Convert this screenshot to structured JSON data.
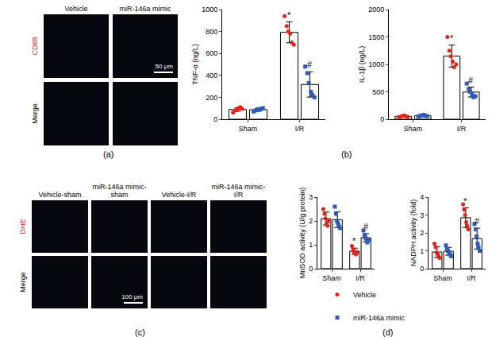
{
  "panel_labels": [
    "(a)",
    "(b)",
    "(c)",
    "(d)"
  ],
  "images": [
    {
      "columns": [
        "Vehicle",
        "miR-146a mimic"
      ],
      "rows": [
        "CD68",
        "Merge"
      ],
      "scale_bar": "50 μm"
    },
    {
      "columns": [
        "Vehicle-sham",
        "miR-146a mimic-sham",
        "Vehicle-I/R",
        "miR-146a mimic-I/R"
      ],
      "rows": [
        "DHE",
        "Merge"
      ],
      "scale_bar": "100 μm"
    }
  ],
  "chart_data": [
    {
      "type": "bar",
      "y_label": "TNF-α (ng/L)",
      "categories": [
        "Sham",
        "I/R"
      ],
      "ylim": [
        0,
        1000
      ],
      "yticks": [
        0,
        200,
        400,
        600,
        800,
        1000
      ],
      "grid": false,
      "series": [
        {
          "name": "Vehicle",
          "color": "#e8201c",
          "marker": "circle",
          "values": [
            89,
            792
          ],
          "errors": [
            17,
            95
          ],
          "points": [
            [
              60,
              80,
              90,
              100,
              110,
              95
            ],
            [
              940,
              850,
              800,
              780,
              700,
              680
            ]
          ]
        },
        {
          "name": "miR-146a mimic",
          "color": "#2f5bb7",
          "marker": "square",
          "values": [
            87,
            317
          ],
          "errors": [
            11,
            115
          ],
          "points": [
            [
              70,
              80,
              90,
              85,
              95,
              100
            ],
            [
              480,
              420,
              330,
              250,
              220,
              200
            ]
          ]
        }
      ],
      "annotations": [
        {
          "category": "I/R",
          "series": "Vehicle",
          "text": "*"
        },
        {
          "category": "I/R",
          "series": "miR-146a mimic",
          "text": "#"
        }
      ]
    },
    {
      "type": "bar",
      "y_label": "IL-1β (ng/L)",
      "categories": [
        "Sham",
        "I/R"
      ],
      "ylim": [
        0,
        2000
      ],
      "yticks": [
        0,
        500,
        1000,
        1500,
        2000
      ],
      "grid": false,
      "series": [
        {
          "name": "Vehicle",
          "color": "#e8201c",
          "marker": "circle",
          "values": [
            53,
            1150
          ],
          "errors": [
            11,
            200
          ],
          "points": [
            [
              40,
              50,
              60,
              70,
              55,
              45
            ],
            [
              1500,
              1250,
              1150,
              1050,
              950,
              1000
            ]
          ]
        },
        {
          "name": "miR-146a mimic",
          "color": "#2f5bb7",
          "marker": "square",
          "values": [
            63,
            495
          ],
          "errors": [
            11,
            90
          ],
          "points": [
            [
              50,
              60,
              70,
              80,
              65,
              55
            ],
            [
              650,
              550,
              500,
              450,
              400,
              420
            ]
          ]
        }
      ],
      "annotations": [
        {
          "category": "I/R",
          "series": "Vehicle",
          "text": "*"
        },
        {
          "category": "I/R",
          "series": "miR-146a mimic",
          "text": "#"
        }
      ]
    },
    {
      "type": "bar",
      "y_label": "MnSOD activity (U/g protein)",
      "categories": [
        "Sham",
        "I/R"
      ],
      "ylim": [
        0,
        3
      ],
      "yticks": [
        0,
        1,
        2,
        3
      ],
      "grid": false,
      "series": [
        {
          "name": "Vehicle",
          "color": "#e8201c",
          "marker": "circle",
          "values": [
            2.1,
            0.73
          ],
          "errors": [
            0.27,
            0.13
          ],
          "points": [
            [
              2.5,
              2.3,
              2.1,
              1.9,
              1.8,
              2.0
            ],
            [
              0.95,
              0.8,
              0.7,
              0.65,
              0.6,
              0.7
            ]
          ]
        },
        {
          "name": "miR-146a mimic",
          "color": "#2f5bb7",
          "marker": "square",
          "values": [
            2.05,
            1.3
          ],
          "errors": [
            0.33,
            0.17
          ],
          "points": [
            [
              2.6,
              2.3,
              2.0,
              1.9,
              1.8,
              1.7
            ],
            [
              1.6,
              1.4,
              1.3,
              1.2,
              1.1,
              1.2
            ]
          ]
        }
      ],
      "annotations": [
        {
          "category": "I/R",
          "series": "Vehicle",
          "text": "*"
        },
        {
          "category": "I/R",
          "series": "miR-146a mimic",
          "text": "#"
        }
      ]
    },
    {
      "type": "bar",
      "y_label": "NADPH activity (fold)",
      "categories": [
        "Sham",
        "I/R"
      ],
      "ylim": [
        0,
        4
      ],
      "yticks": [
        0,
        1,
        2,
        3,
        4
      ],
      "grid": false,
      "series": [
        {
          "name": "Vehicle",
          "color": "#e8201c",
          "marker": "circle",
          "values": [
            0.93,
            2.85
          ],
          "errors": [
            0.3,
            0.55
          ],
          "points": [
            [
              1.4,
              1.2,
              0.9,
              0.8,
              0.7,
              0.6
            ],
            [
              3.6,
              3.3,
              3.0,
              2.6,
              2.4,
              2.2
            ]
          ]
        },
        {
          "name": "miR-146a mimic",
          "color": "#2f5bb7",
          "marker": "square",
          "values": [
            0.97,
            1.68
          ],
          "errors": [
            0.22,
            0.58
          ],
          "points": [
            [
              1.3,
              1.1,
              1.0,
              0.9,
              0.8,
              0.7
            ],
            [
              2.5,
              2.2,
              1.8,
              1.4,
              1.2,
              1.0
            ]
          ]
        }
      ],
      "annotations": [
        {
          "category": "I/R",
          "series": "Vehicle",
          "text": "*"
        },
        {
          "category": "I/R",
          "series": "miR-146a mimic",
          "text": "#"
        }
      ]
    }
  ]
}
